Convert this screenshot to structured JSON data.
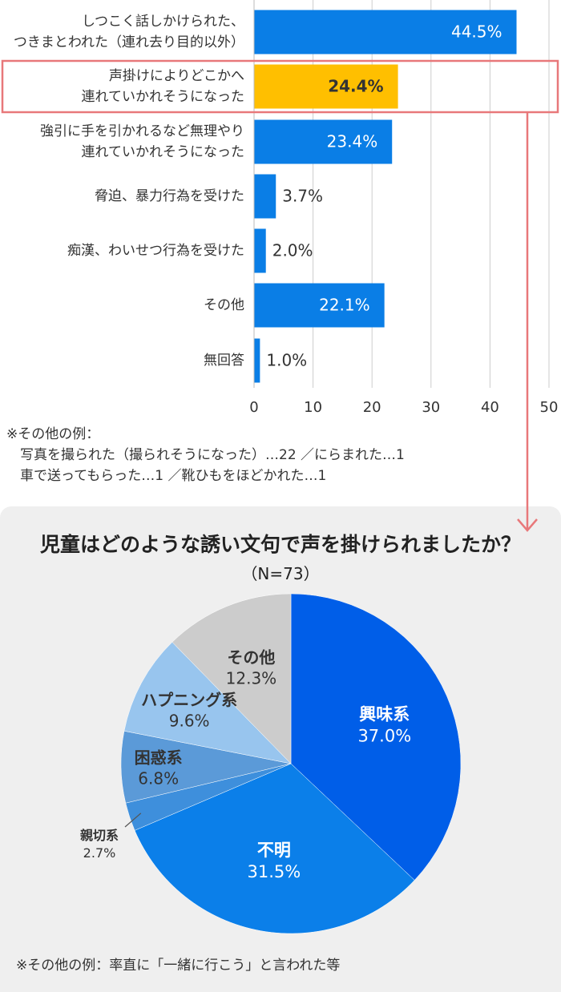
{
  "chart_data": [
    {
      "type": "bar",
      "orientation": "horizontal",
      "unit": "%",
      "categories": [
        [
          "しつこく話しかけられた、",
          "つきまとわれた（連れ去り目的以外）"
        ],
        [
          "声掛けによりどこかへ",
          "連れていかれそうになった"
        ],
        [
          "強引に手を引かれるなど無理やり",
          "連れていかれそうになった"
        ],
        [
          "脅迫、暴力行為を受けた"
        ],
        [
          "痴漢、わいせつ行為を受けた"
        ],
        [
          "その他"
        ],
        [
          "無回答"
        ]
      ],
      "values": [
        44.5,
        24.4,
        23.4,
        3.7,
        2.0,
        22.1,
        1.0
      ],
      "value_labels": [
        "44.5%",
        "24.4%",
        "23.4%",
        "3.7%",
        "2.0%",
        "22.1%",
        "1.0%"
      ],
      "highlight_index": 1,
      "xlim": [
        0,
        50
      ],
      "xticks": [
        "0",
        "10",
        "20",
        "30",
        "40",
        "50"
      ],
      "grid": true,
      "colors": {
        "bar": "#0a7ee6",
        "highlight": "#ffbf00",
        "highlight_box": "#e8787a",
        "grid": "#cccccc"
      },
      "notes": [
        "※その他の例：",
        "　写真を撮られた（撮られそうになった）…22 ／にらまれた…1",
        "　車で送ってもらった…1 ／靴ひもをほどかれた…1"
      ]
    },
    {
      "type": "pie",
      "title": "児童はどのような誘い文句で声を掛けられましたか？",
      "subtitle": "（N=73）",
      "slices": [
        {
          "name": "興味系",
          "value": 37.0,
          "label": "37.0%",
          "color": "#005ee8"
        },
        {
          "name": "不明",
          "value": 31.5,
          "label": "31.5%",
          "color": "#0b7fe9"
        },
        {
          "name": "親切系",
          "value": 2.7,
          "label": "2.7%",
          "color": "#3e8fdc"
        },
        {
          "name": "困惑系",
          "value": 6.8,
          "label": "6.8%",
          "color": "#5b9ad8"
        },
        {
          "name": "ハプニング系",
          "value": 9.6,
          "label": "9.6%",
          "color": "#98c5ee"
        },
        {
          "name": "その他",
          "value": 12.3,
          "label": "12.3%",
          "color": "#cccccc"
        }
      ],
      "note": "※その他の例：率直に「一緒に行こう」と言われた等"
    }
  ]
}
